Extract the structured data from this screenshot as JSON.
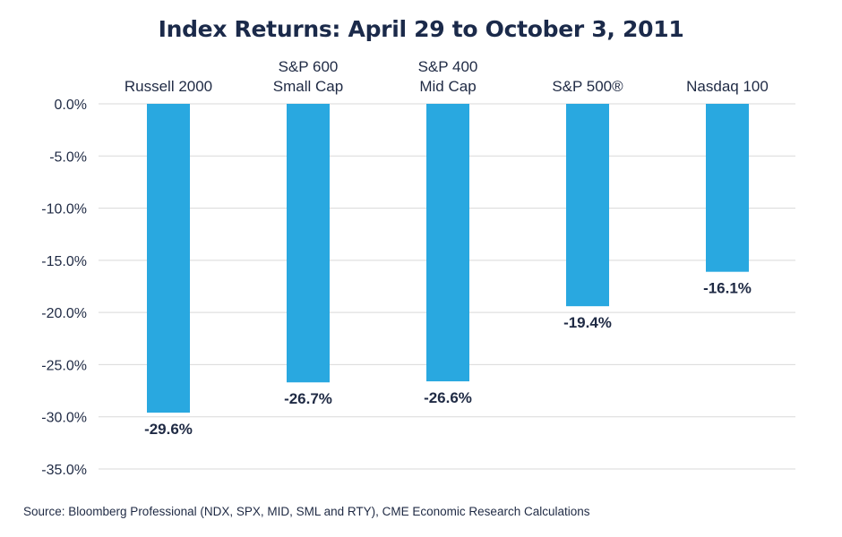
{
  "chart_data": {
    "type": "bar",
    "title": "Index Returns: April 29 to October 3, 2011",
    "categories": [
      [
        "Russell 2000"
      ],
      [
        "S&P 600",
        "Small Cap"
      ],
      [
        "S&P 400",
        "Mid Cap"
      ],
      [
        "S&P 500®"
      ],
      [
        "Nasdaq 100"
      ]
    ],
    "values": [
      -29.6,
      -26.7,
      -26.6,
      -19.4,
      -16.1
    ],
    "data_labels": [
      "-29.6%",
      "-26.7%",
      "-26.6%",
      "-19.4%",
      "-16.1%"
    ],
    "yticks": [
      0,
      -5,
      -10,
      -15,
      -20,
      -25,
      -30,
      -35
    ],
    "ytick_labels": [
      "0.0%",
      "-5.0%",
      "-10.0%",
      "-15.0%",
      "-20.0%",
      "-25.0%",
      "-30.0%",
      "-35.0%"
    ],
    "ylim": [
      -35,
      0
    ],
    "grid": true,
    "category_labels_position": "top",
    "bar_color": "#29a8e0",
    "grid_color": "#d9d9d9"
  },
  "footer": {
    "source": "Source: Bloomberg Professional (NDX, SPX, MID, SML and RTY), CME Economic Research Calculations"
  }
}
